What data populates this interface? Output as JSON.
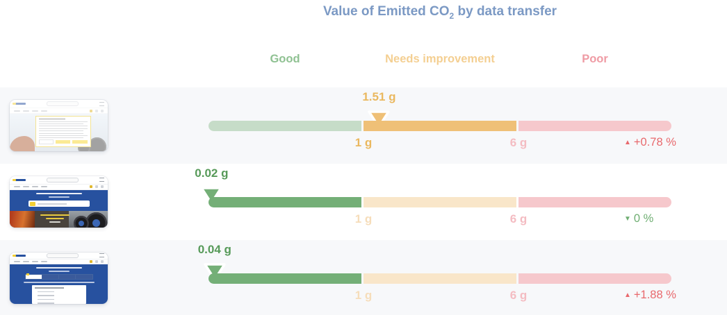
{
  "title": {
    "pre": "Value of Emitted CO",
    "sub": "2",
    "post": " by data transfer"
  },
  "zone_headers": [
    {
      "label": "Good",
      "color": "#8fc192"
    },
    {
      "label": "Needs improvement",
      "color": "#f4cf92"
    },
    {
      "label": "Poor",
      "color": "#ef9ba4"
    }
  ],
  "segments": {
    "good": {
      "active": "#74af77",
      "faded": "#c6dcc8",
      "min": 0,
      "max": 1
    },
    "needs_improvement": {
      "active": "#efc077",
      "faded": "#f9e6c9",
      "min": 1,
      "max": 6
    },
    "poor": {
      "active": "#ec8f98",
      "faded": "#f6c8cc",
      "min": 6,
      "max": 11
    }
  },
  "glyphs": {
    "up": "▲",
    "down": "▼",
    "marker": "down-arrow-marker-icon"
  },
  "rows": [
    {
      "page_thumbnail": "website-with-cookie-consent-dialog",
      "value": 1.51,
      "value_label": "1.51 g",
      "value_color": "#eab85f",
      "zone": "needs_improvement",
      "threshold_1": {
        "label": "1 g",
        "color": "#eab85f"
      },
      "threshold_6": {
        "label": "6 g",
        "color": "#f4bcc2"
      },
      "trend": {
        "direction": "up",
        "label": "+0.78 %",
        "color": "#e8696d"
      }
    },
    {
      "page_thumbnail": "michelin-homepage",
      "value": 0.02,
      "value_label": "0.02 g",
      "value_color": "#579a59",
      "zone": "good",
      "threshold_1": {
        "label": "1 g",
        "color": "#f6ddba"
      },
      "threshold_6": {
        "label": "6 g",
        "color": "#f4bcc2"
      },
      "trend": {
        "direction": "down",
        "label": "0 %",
        "color": "#6fae72"
      }
    },
    {
      "page_thumbnail": "michelin-search-form-page",
      "value": 0.04,
      "value_label": "0.04 g",
      "value_color": "#579a59",
      "zone": "good",
      "threshold_1": {
        "label": "1 g",
        "color": "#f6ddba"
      },
      "threshold_6": {
        "label": "6 g",
        "color": "#f4bcc2"
      },
      "trend": {
        "direction": "up",
        "label": "+1.88 %",
        "color": "#e8696d"
      }
    }
  ],
  "chart_data": {
    "type": "bar",
    "variant": "horizontal-bullet-gauge",
    "title": "Value of Emitted CO2 by data transfer",
    "unit": "g",
    "zones": [
      {
        "label": "Good",
        "min": 0,
        "max": 1
      },
      {
        "label": "Needs improvement",
        "min": 1,
        "max": 6
      },
      {
        "label": "Poor",
        "min": 6,
        "max": 11
      }
    ],
    "threshold_labels": [
      "1 g",
      "6 g"
    ],
    "rows": [
      {
        "page": "website with cookie consent dialog",
        "value": 1.51,
        "value_label": "1.51 g",
        "zone": "Needs improvement",
        "change": "+0.78 %",
        "trend": "up"
      },
      {
        "page": "michelin homepage",
        "value": 0.02,
        "value_label": "0.02 g",
        "zone": "Good",
        "change": "0 %",
        "trend": "down"
      },
      {
        "page": "michelin search form page",
        "value": 0.04,
        "value_label": "0.04 g",
        "zone": "Good",
        "change": "+1.88 %",
        "trend": "up"
      }
    ],
    "legend_position": "top",
    "grid": false
  }
}
